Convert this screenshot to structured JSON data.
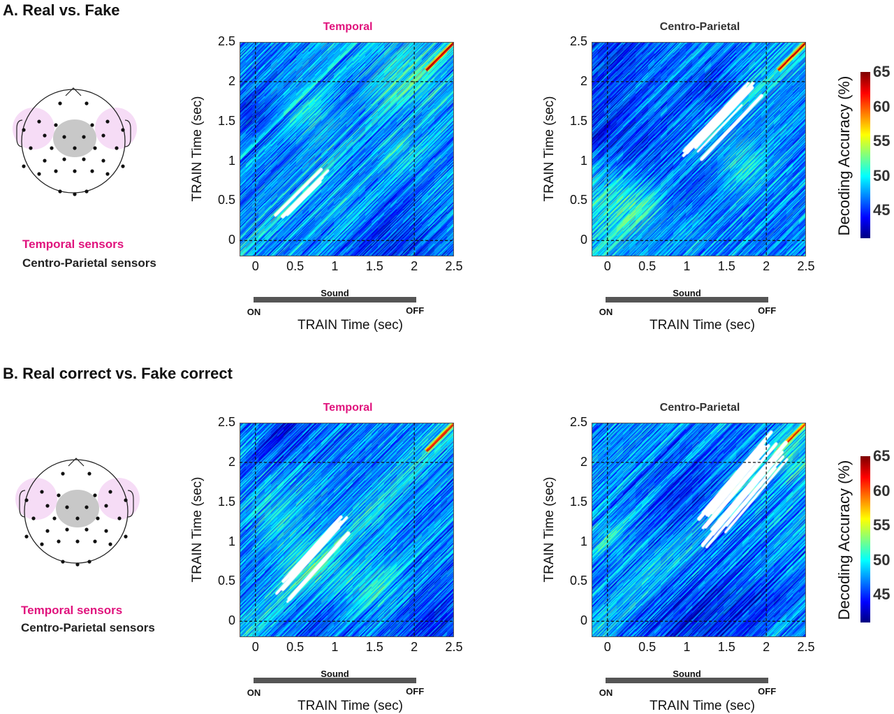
{
  "sections": [
    {
      "title": "A. Real vs. Fake",
      "legend": {
        "temporal": "Temporal sensors",
        "centro": "Centro-Parietal sensors"
      }
    },
    {
      "title": "B. Real correct vs. Fake correct",
      "legend": {
        "temporal": "Temporal sensors",
        "centro": "Centro-Parietal sensors"
      }
    }
  ],
  "colors": {
    "temporal": "#e0137d",
    "centro": "#333333",
    "temporal_region": "#f4d6f4",
    "centro_region": "#c8c8c8"
  },
  "sound_bar": {
    "label": "Sound",
    "on": "ON",
    "off": "OFF"
  },
  "colorbar": {
    "label": "Decoding Accuracy (%)",
    "ticks": [
      "65",
      "60",
      "55",
      "50",
      "45"
    ],
    "range": [
      41,
      65
    ]
  },
  "chart_data": [
    {
      "type": "heatmap",
      "section": "A",
      "title": "Temporal",
      "title_color": "#e0137d",
      "xlabel": "TRAIN  Time (sec)",
      "ylabel": "TRAIN  Time (sec)",
      "xticks": [
        "0",
        "0.5",
        "1",
        "1.5",
        "2",
        "2.5"
      ],
      "yticks": [
        "2.5",
        "2",
        "1.5",
        "1",
        "0.5",
        "0"
      ],
      "xlim": [
        -0.2,
        2.5
      ],
      "ylim": [
        -0.2,
        2.5
      ],
      "reference_lines": {
        "x": [
          0,
          2
        ],
        "y": [
          0,
          2
        ]
      },
      "colormap": "jet",
      "clim": [
        41,
        65
      ],
      "significant_region": {
        "from": [
          0.2,
          0.2
        ],
        "to": [
          0.95,
          0.95
        ],
        "width": 0.1
      },
      "peak": {
        "at": [
          2.3,
          2.3
        ],
        "value": 63
      }
    },
    {
      "type": "heatmap",
      "section": "A",
      "title": "Centro-Parietal",
      "title_color": "#333333",
      "xlabel": "TRAIN  Time (sec)",
      "ylabel": "TRAIN  Time (sec)",
      "xticks": [
        "0",
        "0.5",
        "1",
        "1.5",
        "2",
        "2.5"
      ],
      "yticks": [
        "2.5",
        "2",
        "1.5",
        "1",
        "0.5",
        "0"
      ],
      "xlim": [
        -0.2,
        2.5
      ],
      "ylim": [
        -0.2,
        2.5
      ],
      "reference_lines": {
        "x": [
          0,
          2
        ],
        "y": [
          0,
          2
        ]
      },
      "colormap": "jet",
      "clim": [
        41,
        65
      ],
      "significant_region": {
        "from": [
          1.0,
          1.0
        ],
        "to": [
          1.9,
          1.95
        ],
        "width": 0.25
      },
      "peak": {
        "at": [
          2.3,
          2.3
        ],
        "value": 63
      }
    },
    {
      "type": "heatmap",
      "section": "B",
      "title": "Temporal",
      "title_color": "#e0137d",
      "xlabel": "TRAIN  Time (sec)",
      "ylabel": "TRAIN  Time (sec)",
      "xticks": [
        "0",
        "0.5",
        "1",
        "1.5",
        "2",
        "2.5"
      ],
      "yticks": [
        "2.5",
        "2",
        "1.5",
        "1",
        "0.5",
        "0"
      ],
      "xlim": [
        -0.2,
        2.5
      ],
      "ylim": [
        -0.2,
        2.5
      ],
      "reference_lines": {
        "x": [
          0,
          2
        ],
        "y": [
          0,
          2
        ]
      },
      "colormap": "jet",
      "clim": [
        41,
        65
      ],
      "significant_region": {
        "from": [
          0.3,
          0.3
        ],
        "to": [
          1.2,
          1.3
        ],
        "width": 0.25
      },
      "peak": {
        "at": [
          2.3,
          2.3
        ],
        "value": 63
      }
    },
    {
      "type": "heatmap",
      "section": "B",
      "title": "Centro-Parietal",
      "title_color": "#333333",
      "xlabel": "TRAIN  Time (sec)",
      "ylabel": "TRAIN  Time (sec)",
      "xticks": [
        "0",
        "0.5",
        "1",
        "1.5",
        "2",
        "2.5"
      ],
      "yticks": [
        "2.5",
        "2",
        "1.5",
        "1",
        "0.5",
        "0"
      ],
      "xlim": [
        -0.2,
        2.5
      ],
      "ylim": [
        -0.2,
        2.5
      ],
      "reference_lines": {
        "x": [
          0,
          2
        ],
        "y": [
          0,
          2
        ]
      },
      "colormap": "jet",
      "clim": [
        41,
        65
      ],
      "significant_region": {
        "from": [
          1.1,
          1.0
        ],
        "to": [
          2.2,
          2.3
        ],
        "width": 0.45
      },
      "peak": {
        "at": [
          2.3,
          2.3
        ],
        "value": 63
      }
    }
  ]
}
